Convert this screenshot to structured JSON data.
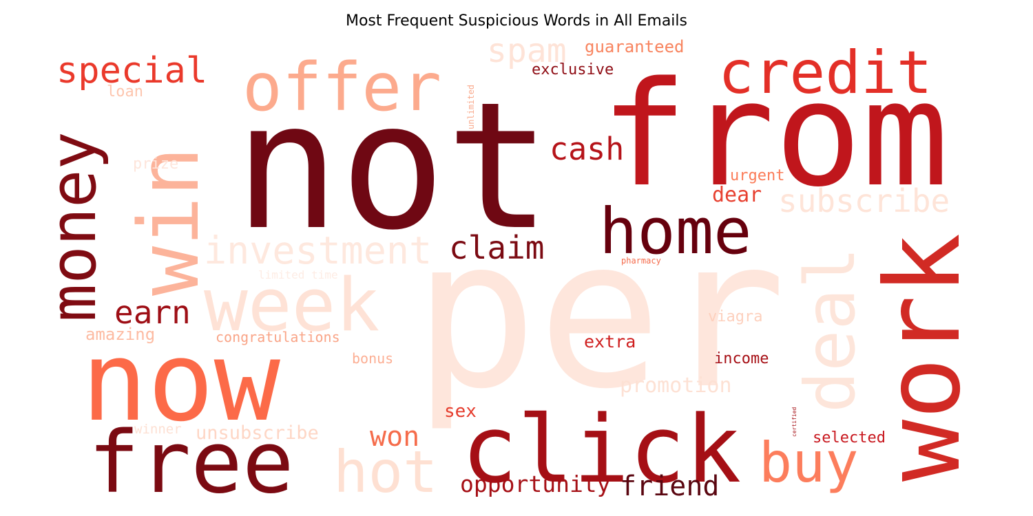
{
  "chart_data": {
    "type": "wordcloud",
    "title": "Most Frequent Suspicious Words in All Emails",
    "colormap": "Reds",
    "background": "#ffffff",
    "words": [
      {
        "text": "per",
        "weight": 1.0,
        "color": "#fee6dc",
        "rotate": false
      },
      {
        "text": "not",
        "weight": 0.98,
        "color": "#6f0813",
        "rotate": false
      },
      {
        "text": "from",
        "weight": 0.8,
        "color": "#c0161c",
        "rotate": false
      },
      {
        "text": "now",
        "weight": 0.6,
        "color": "#fc6a48",
        "rotate": false
      },
      {
        "text": "work",
        "weight": 0.58,
        "color": "#d12a24",
        "rotate": true
      },
      {
        "text": "click",
        "weight": 0.52,
        "color": "#a50f15",
        "rotate": false
      },
      {
        "text": "free",
        "weight": 0.48,
        "color": "#7b0a12",
        "rotate": false
      },
      {
        "text": "win",
        "weight": 0.46,
        "color": "#fcb39a",
        "rotate": true
      },
      {
        "text": "week",
        "weight": 0.44,
        "color": "#fee2d6",
        "rotate": false
      },
      {
        "text": "deal",
        "weight": 0.42,
        "color": "#fde5da",
        "rotate": true
      },
      {
        "text": "offer",
        "weight": 0.4,
        "color": "#fcaa8d",
        "rotate": false
      },
      {
        "text": "money",
        "weight": 0.38,
        "color": "#7f0b12",
        "rotate": true
      },
      {
        "text": "home",
        "weight": 0.38,
        "color": "#66000d",
        "rotate": false
      },
      {
        "text": "hot",
        "weight": 0.34,
        "color": "#fee0d2",
        "rotate": false
      },
      {
        "text": "credit",
        "weight": 0.34,
        "color": "#e32f27",
        "rotate": false
      },
      {
        "text": "buy",
        "weight": 0.32,
        "color": "#fc7d5c",
        "rotate": false
      },
      {
        "text": "investment",
        "weight": 0.22,
        "color": "#fee8de",
        "rotate": false
      },
      {
        "text": "special",
        "weight": 0.2,
        "color": "#ea392b",
        "rotate": false
      },
      {
        "text": "claim",
        "weight": 0.18,
        "color": "#7b0a12",
        "rotate": false
      },
      {
        "text": "subscribe",
        "weight": 0.18,
        "color": "#fee4d8",
        "rotate": false
      },
      {
        "text": "spam",
        "weight": 0.17,
        "color": "#fee3d7",
        "rotate": false
      },
      {
        "text": "earn",
        "weight": 0.17,
        "color": "#9e0e15",
        "rotate": false
      },
      {
        "text": "friend",
        "weight": 0.17,
        "color": "#5a0610",
        "rotate": false
      },
      {
        "text": "cash",
        "weight": 0.16,
        "color": "#b51319",
        "rotate": false
      },
      {
        "text": "won",
        "weight": 0.15,
        "color": "#f56c4b",
        "rotate": false
      },
      {
        "text": "opportunity",
        "weight": 0.14,
        "color": "#a50f15",
        "rotate": false
      },
      {
        "text": "promotion",
        "weight": 0.13,
        "color": "#fde1d4",
        "rotate": false
      },
      {
        "text": "unsubscribe",
        "weight": 0.12,
        "color": "#fed6c5",
        "rotate": false
      },
      {
        "text": "guaranteed",
        "weight": 0.11,
        "color": "#f8845f",
        "rotate": false
      },
      {
        "text": "dear",
        "weight": 0.11,
        "color": "#e74030",
        "rotate": false
      },
      {
        "text": "selected",
        "weight": 0.1,
        "color": "#c8171e",
        "rotate": false
      },
      {
        "text": "sex",
        "weight": 0.1,
        "color": "#e53b2c",
        "rotate": false
      },
      {
        "text": "exclusive",
        "weight": 0.1,
        "color": "#8e0b13",
        "rotate": false
      },
      {
        "text": "extra",
        "weight": 0.1,
        "color": "#cf1f1f",
        "rotate": false
      },
      {
        "text": "income",
        "weight": 0.1,
        "color": "#a60f15",
        "rotate": false
      },
      {
        "text": "urgent",
        "weight": 0.09,
        "color": "#fb7b57",
        "rotate": false
      },
      {
        "text": "viagra",
        "weight": 0.09,
        "color": "#fdd0bd",
        "rotate": false
      },
      {
        "text": "amazing",
        "weight": 0.09,
        "color": "#fdbba2",
        "rotate": false
      },
      {
        "text": "congratulations",
        "weight": 0.08,
        "color": "#f9a487",
        "rotate": false
      },
      {
        "text": "loan",
        "weight": 0.08,
        "color": "#fdc5ae",
        "rotate": false
      },
      {
        "text": "bonus",
        "weight": 0.08,
        "color": "#fcae93",
        "rotate": false
      },
      {
        "text": "prize",
        "weight": 0.08,
        "color": "#fee5db",
        "rotate": false
      },
      {
        "text": "winner",
        "weight": 0.07,
        "color": "#fde0d3",
        "rotate": false
      },
      {
        "text": "limited time",
        "weight": 0.06,
        "color": "#feece4",
        "rotate": false
      },
      {
        "text": "pharmacy",
        "weight": 0.05,
        "color": "#f56a4a",
        "rotate": false
      },
      {
        "text": "unlimited",
        "weight": 0.05,
        "color": "#f9a98c",
        "rotate": true
      },
      {
        "text": "certified",
        "weight": 0.03,
        "color": "#a50f15",
        "rotate": true
      }
    ]
  }
}
